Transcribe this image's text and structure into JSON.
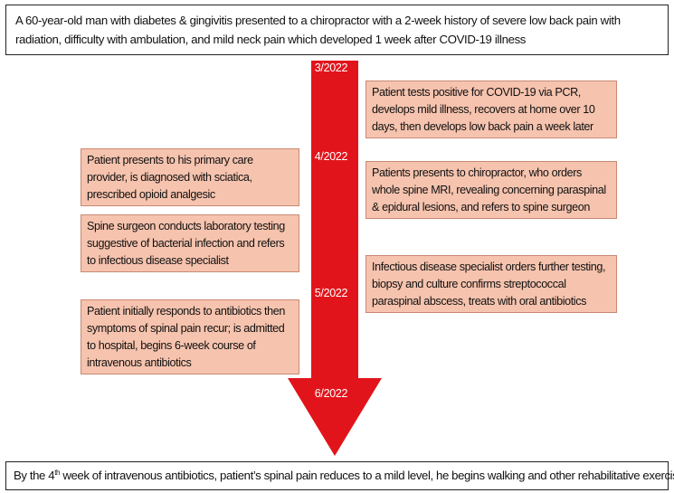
{
  "header": {
    "summary": "A 60-year-old man with diabetes & gingivitis presented to a chiropractor with a 2-week history of severe low back pain with radiation, difficulty with ambulation, and mild neck pain which developed 1 week after COVID-19 illness"
  },
  "timeline": {
    "arrow_color": "#e2141b",
    "dates": [
      "3/2022",
      "4/2022",
      "5/2022",
      "6/2022"
    ]
  },
  "left_events": [
    "Patient presents to his primary care provider, is diagnosed with sciatica, prescribed opioid analgesic",
    "Spine surgeon conducts laboratory testing suggestive of bacterial infection and refers to infectious disease specialist",
    "Patient initially responds to antibiotics then symptoms of spinal pain recur; is admitted to hospital, begins 6-week course of intravenous antibiotics"
  ],
  "right_events": [
    "Patient tests positive for COVID-19 via PCR, develops mild illness, recovers at home over 10 days, then develops low back pain a week later",
    "Patients presents to chiropractor, who orders whole spine MRI, revealing concerning paraspinal & epidural lesions, and refers to spine surgeon",
    "Infectious disease specialist orders further testing, biopsy and culture confirms streptococcal paraspinal abscess, treats with oral antibiotics"
  ],
  "footer": {
    "prefix": "By the 4",
    "ordinal": "th",
    "rest": " week of intravenous antibiotics, patient’s spinal pain reduces to a mild level, he begins walking and other rehabilitative exercises"
  },
  "colors": {
    "event_fill": "#f6c3ae",
    "event_border": "#c98a73"
  }
}
